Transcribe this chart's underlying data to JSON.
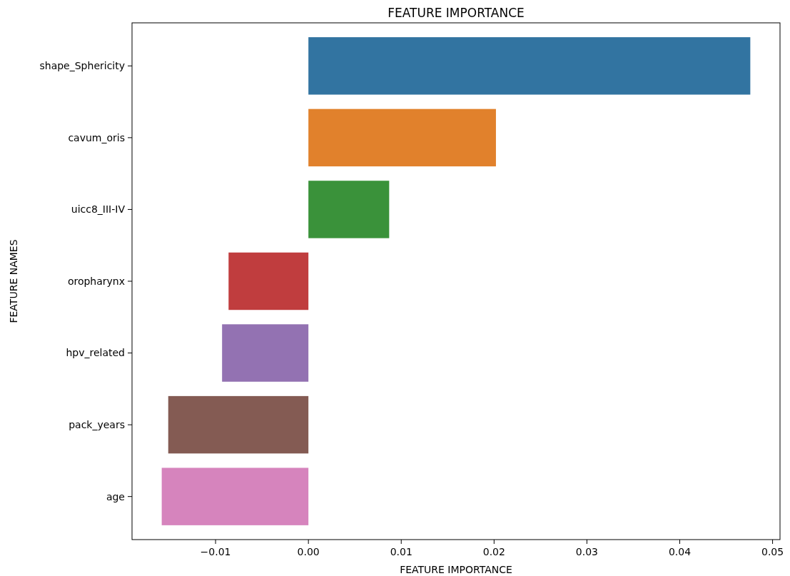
{
  "chart_data": {
    "type": "bar",
    "orientation": "horizontal",
    "title": "FEATURE IMPORTANCE",
    "xlabel": "FEATURE IMPORTANCE",
    "ylabel": "FEATURE NAMES",
    "categories": [
      "shape_Sphericity",
      "cavum_oris",
      "uicc8_III-IV",
      "oropharynx",
      "hpv_related",
      "pack_years",
      "age"
    ],
    "values": [
      0.0476,
      0.0202,
      0.0087,
      -0.0086,
      -0.0093,
      -0.0151,
      -0.0158
    ],
    "colors": [
      "#3274a1",
      "#e1812c",
      "#3a923a",
      "#c03d3e",
      "#9372b2",
      "#845b53",
      "#d684bd"
    ],
    "xlim": [
      -0.019,
      0.0508
    ],
    "xticks": [
      {
        "value": -0.01,
        "label": "−0.01"
      },
      {
        "value": 0,
        "label": "0.00"
      },
      {
        "value": 0.01,
        "label": "0.01"
      },
      {
        "value": 0.02,
        "label": "0.02"
      },
      {
        "value": 0.03,
        "label": "0.03"
      },
      {
        "value": 0.04,
        "label": "0.04"
      },
      {
        "value": 0.05,
        "label": "0.05"
      }
    ],
    "grid": false
  }
}
